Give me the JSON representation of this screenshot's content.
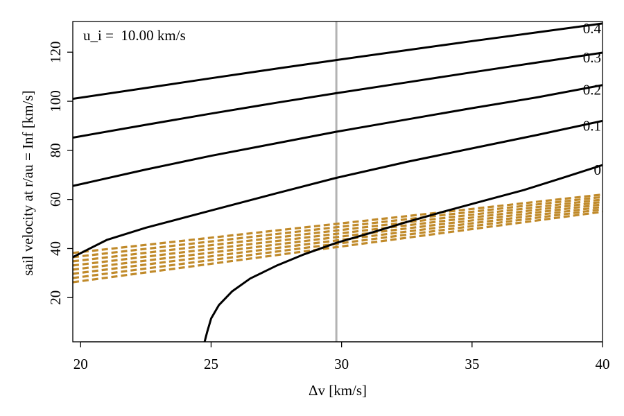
{
  "chart_data": {
    "type": "line",
    "title": "",
    "xlabel": "Δv [km/s]",
    "ylabel": "sail velocity at r/au = Inf  [km/s]",
    "annotation": "u_i =  10.00 km/s",
    "xlim": [
      19.7,
      40
    ],
    "ylim": [
      2,
      132.5
    ],
    "x_ticks": [
      20,
      25,
      30,
      35,
      40
    ],
    "y_ticks": [
      20,
      40,
      60,
      80,
      100,
      120
    ],
    "vline": {
      "x": 29.8,
      "color": "#b3b3b3"
    },
    "colors": {
      "curve": "#000000",
      "dashed": "#c08a2a",
      "vline": "#b3b3b3"
    },
    "series": [
      {
        "name": "0.4",
        "label": "0.4",
        "style": "solid",
        "x": [
          19.7,
          22.5,
          25,
          27.5,
          29.8,
          32.5,
          35,
          37.5,
          40
        ],
        "y": [
          101,
          105.4,
          109.4,
          113.3,
          116.8,
          120.8,
          124.5,
          128.1,
          131.7
        ]
      },
      {
        "name": "0.3",
        "label": "0.3",
        "style": "solid",
        "x": [
          19.7,
          22.5,
          25,
          27.5,
          29.8,
          32.5,
          35,
          37.5,
          40
        ],
        "y": [
          85.2,
          90.4,
          95,
          99.4,
          103.3,
          107.7,
          111.8,
          115.8,
          119.8
        ]
      },
      {
        "name": "0.2",
        "label": "0.2",
        "style": "solid",
        "x": [
          19.7,
          22.5,
          25,
          27.5,
          29.8,
          32.5,
          35,
          37.5,
          40
        ],
        "y": [
          65.5,
          72.2,
          77.8,
          82.9,
          87.6,
          92.6,
          97.2,
          101.6,
          106.6
        ]
      },
      {
        "name": "0.1",
        "label": "0.1",
        "style": "solid",
        "x": [
          19.7,
          21,
          22.5,
          25,
          27.5,
          29.8,
          32.5,
          35,
          37.5,
          40
        ],
        "y": [
          36.5,
          43.5,
          48.5,
          55.5,
          62.5,
          68.8,
          75.3,
          80.8,
          86.3,
          92
        ]
      },
      {
        "name": "0",
        "label": "0",
        "style": "solid",
        "x": [
          24.75,
          24.85,
          25,
          25.3,
          25.8,
          26.5,
          27.5,
          28.5,
          29.8,
          31,
          32.5,
          34,
          35.5,
          37,
          38.5,
          40
        ],
        "y": [
          2,
          6,
          11.5,
          17,
          22.5,
          27.8,
          33,
          37.4,
          42.3,
          46,
          50.8,
          55.3,
          59.6,
          63.9,
          68.9,
          74
        ]
      },
      {
        "name": "dashed-1",
        "style": "dashed",
        "x": [
          19.7,
          40
        ],
        "y": [
          38.2,
          62
        ]
      },
      {
        "name": "dashed-2",
        "style": "dashed",
        "x": [
          19.7,
          40
        ],
        "y": [
          36.5,
          61
        ]
      },
      {
        "name": "dashed-3",
        "style": "dashed",
        "x": [
          19.7,
          40
        ],
        "y": [
          34.8,
          60
        ]
      },
      {
        "name": "dashed-4",
        "style": "dashed",
        "x": [
          19.7,
          40
        ],
        "y": [
          33.1,
          59
        ]
      },
      {
        "name": "dashed-5",
        "style": "dashed",
        "x": [
          19.7,
          40
        ],
        "y": [
          31.4,
          58
        ]
      },
      {
        "name": "dashed-6",
        "style": "dashed",
        "x": [
          19.7,
          40
        ],
        "y": [
          29.7,
          57
        ]
      },
      {
        "name": "dashed-7",
        "style": "dashed",
        "x": [
          19.7,
          40
        ],
        "y": [
          28,
          56
        ]
      },
      {
        "name": "dashed-8",
        "style": "dashed",
        "x": [
          19.7,
          40
        ],
        "y": [
          26.3,
          55
        ]
      }
    ]
  }
}
